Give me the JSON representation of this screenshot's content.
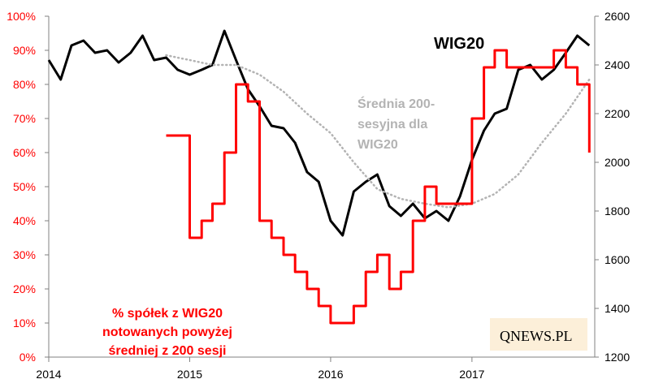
{
  "chart_data": {
    "type": "line",
    "title": "WIG20",
    "x_axis": {
      "type": "date",
      "tick_labels": [
        "2014",
        "2015",
        "2016",
        "2017"
      ]
    },
    "y_right": {
      "range": [
        1200,
        2600
      ],
      "tick_labels": [
        "1200",
        "1400",
        "1600",
        "1800",
        "2000",
        "2200",
        "2400",
        "2600"
      ]
    },
    "y_left": {
      "range": [
        0,
        100
      ],
      "unit": "%",
      "tick_labels": [
        "0%",
        "10%",
        "20%",
        "30%",
        "40%",
        "50%",
        "60%",
        "70%",
        "80%",
        "90%",
        "100%"
      ]
    },
    "series": [
      {
        "name": "WIG20",
        "color": "#000000",
        "axis": "right",
        "style": "solid",
        "x": [
          "2014-01",
          "2014-02",
          "2014-03",
          "2014-04",
          "2014-05",
          "2014-06",
          "2014-07",
          "2014-08",
          "2014-09",
          "2014-10",
          "2014-11",
          "2014-12",
          "2015-01",
          "2015-02",
          "2015-03",
          "2015-04",
          "2015-05",
          "2015-06",
          "2015-07",
          "2015-08",
          "2015-09",
          "2015-10",
          "2015-11",
          "2015-12",
          "2016-01",
          "2016-02",
          "2016-03",
          "2016-04",
          "2016-05",
          "2016-06",
          "2016-07",
          "2016-08",
          "2016-09",
          "2016-10",
          "2016-11",
          "2016-12",
          "2017-01",
          "2017-02",
          "2017-03",
          "2017-04",
          "2017-05",
          "2017-06",
          "2017-07",
          "2017-08",
          "2017-09",
          "2017-10",
          "2017-11"
        ],
        "values": [
          2420,
          2340,
          2480,
          2500,
          2450,
          2460,
          2410,
          2450,
          2520,
          2420,
          2430,
          2380,
          2360,
          2380,
          2400,
          2540,
          2420,
          2300,
          2230,
          2150,
          2140,
          2080,
          1960,
          1920,
          1760,
          1700,
          1880,
          1920,
          1950,
          1820,
          1780,
          1830,
          1770,
          1800,
          1760,
          1860,
          2010,
          2130,
          2200,
          2220,
          2380,
          2400,
          2340,
          2380,
          2450,
          2520,
          2480
        ],
        "labels": []
      },
      {
        "name": "Średnia 200-sesyjna dla WIG20",
        "color": "#b3b3b3",
        "axis": "right",
        "style": "dotted",
        "x": [
          "2014-11",
          "2014-12",
          "2015-01",
          "2015-03",
          "2015-05",
          "2015-07",
          "2015-09",
          "2015-11",
          "2016-01",
          "2016-03",
          "2016-05",
          "2016-07",
          "2016-09",
          "2016-11",
          "2017-01",
          "2017-03",
          "2017-05",
          "2017-07",
          "2017-09",
          "2017-11"
        ],
        "values": [
          2440,
          2430,
          2420,
          2400,
          2400,
          2360,
          2290,
          2200,
          2120,
          2000,
          1890,
          1850,
          1830,
          1815,
          1830,
          1870,
          1950,
          2080,
          2200,
          2340
        ]
      },
      {
        "name": "% spółek z WIG20 notowanych powyżej średniej z 200 sesji",
        "color": "#ff0000",
        "axis": "left",
        "style": "solid",
        "x": [
          "2014-11",
          "2014-12",
          "2015-01",
          "2015-02",
          "2015-03",
          "2015-04",
          "2015-05",
          "2015-06",
          "2015-07",
          "2015-08",
          "2015-09",
          "2015-10",
          "2015-11",
          "2015-12",
          "2016-01",
          "2016-02",
          "2016-03",
          "2016-04",
          "2016-05",
          "2016-06",
          "2016-07",
          "2016-08",
          "2016-09",
          "2016-10",
          "2016-11",
          "2016-12",
          "2017-01",
          "2017-02",
          "2017-03",
          "2017-04",
          "2017-05",
          "2017-06",
          "2017-07",
          "2017-08",
          "2017-09",
          "2017-10",
          "2017-11"
        ],
        "values": [
          65,
          65,
          35,
          40,
          45,
          60,
          80,
          75,
          40,
          35,
          30,
          25,
          20,
          15,
          10,
          10,
          15,
          25,
          30,
          20,
          25,
          40,
          50,
          45,
          45,
          45,
          70,
          85,
          90,
          85,
          85,
          85,
          85,
          90,
          85,
          80,
          60
        ]
      }
    ],
    "annotations": [
      "% spółek z WIG20\nnotowanych powyżej\nśredniej z 200 sesji",
      "Średnia 200-\nsesyjna dla\nWIG20"
    ],
    "logo": "QNEWS.PL",
    "grid": false,
    "legend": "none"
  }
}
